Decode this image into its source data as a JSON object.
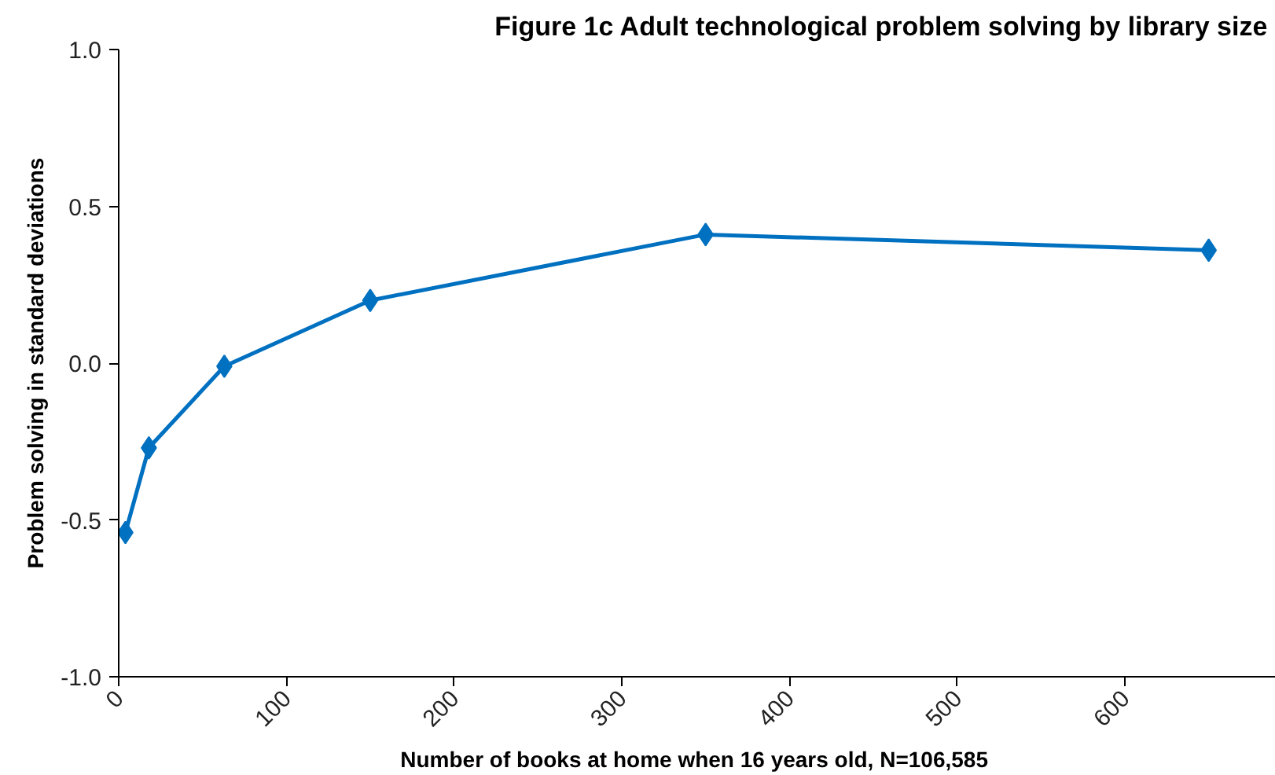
{
  "chart_data": {
    "type": "line",
    "title": "Figure 1c  Adult technological problem solving by library size",
    "xlabel": "Number of books at home when 16 years old,  N=106,585",
    "ylabel": "Problem solving in standard deviations",
    "x": [
      4,
      18,
      63,
      150,
      350,
      650
    ],
    "series": [
      {
        "color": "#0070c0",
        "values": [
          -0.54,
          -0.27,
          -0.01,
          0.2,
          0.41,
          0.36
        ]
      }
    ],
    "xlim": [
      0,
      690
    ],
    "xticks": [
      0,
      100,
      200,
      300,
      400,
      500,
      600
    ],
    "ylim": [
      -1.0,
      1.0
    ],
    "yticks": [
      {
        "value": -1.0,
        "label": "-1.0"
      },
      {
        "value": -0.5,
        "label": "-0.5"
      },
      {
        "value": 0.0,
        "label": "0.0"
      },
      {
        "value": 0.5,
        "label": "0.5"
      },
      {
        "value": 1.0,
        "label": "1.0"
      }
    ],
    "grid": false,
    "marker": "diamond",
    "line_style": "solid"
  }
}
